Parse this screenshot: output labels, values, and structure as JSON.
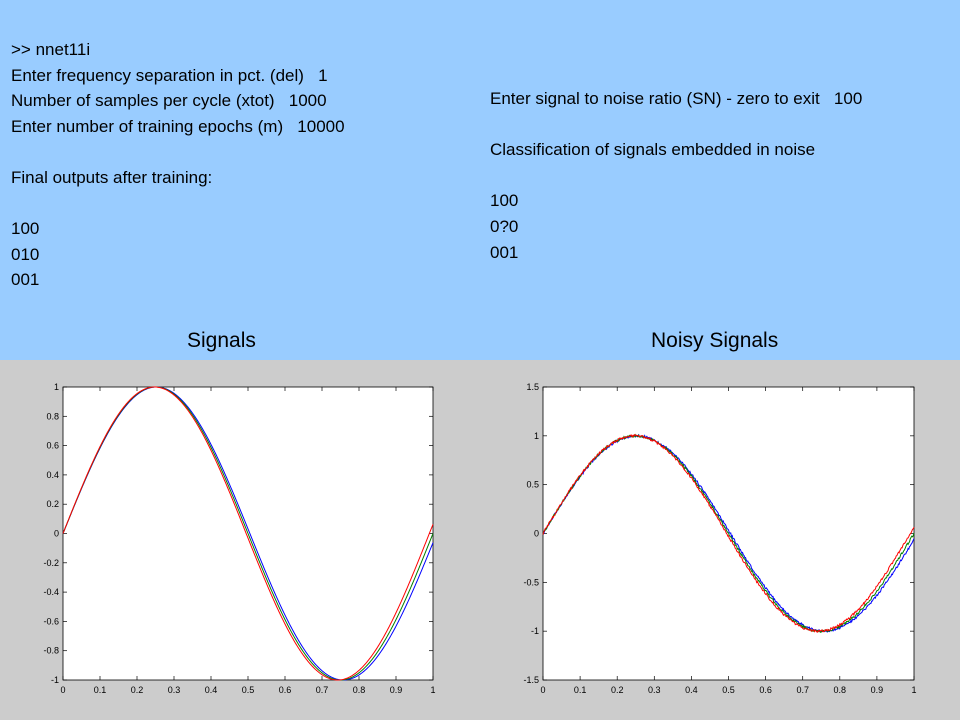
{
  "console_left": [
    ">> nnet11i",
    "Enter frequency separation in pct. (del)   1",
    "Number of samples per cycle (xtot)   1000",
    "Enter number of training epochs (m)   10000",
    "",
    "Final outputs after training:",
    "",
    "100",
    "010",
    "001"
  ],
  "console_right": [
    "Enter signal to noise ratio (SN) - zero to exit   100",
    "",
    "Classification of signals embedded in noise",
    "",
    "100",
    "0?0",
    "001"
  ],
  "plot_titles": {
    "left": "Signals",
    "right": "Noisy Signals"
  },
  "colors": {
    "top_bg": "#99ccff",
    "bottom_bg": "#cccccc",
    "series": [
      "#0000ff",
      "#008000",
      "#ff0000"
    ]
  },
  "chart_data": [
    {
      "type": "line",
      "title": "Signals",
      "xlim": [
        0,
        1
      ],
      "ylim": [
        -1,
        1
      ],
      "xticks": [
        "0",
        "0.1",
        "0.2",
        "0.3",
        "0.4",
        "0.5",
        "0.6",
        "0.7",
        "0.8",
        "0.9",
        "1"
      ],
      "yticks": [
        "1",
        "0.8",
        "0.6",
        "0.4",
        "0.2",
        "0",
        "-0.2",
        "-0.4",
        "-0.6",
        "-0.8",
        "-1"
      ],
      "series": [
        {
          "color": "#0000ff",
          "frequency": 0.99,
          "noise": 0
        },
        {
          "color": "#008000",
          "frequency": 1.0,
          "noise": 0
        },
        {
          "color": "#ff0000",
          "frequency": 1.01,
          "noise": 0
        }
      ]
    },
    {
      "type": "line",
      "title": "Noisy Signals",
      "xlim": [
        0,
        1
      ],
      "ylim": [
        -1.5,
        1.5
      ],
      "xticks": [
        "0",
        "0.1",
        "0.2",
        "0.3",
        "0.4",
        "0.5",
        "0.6",
        "0.7",
        "0.8",
        "0.9",
        "1"
      ],
      "yticks": [
        "1.5",
        "1",
        "0.5",
        "0",
        "-0.5",
        "-1",
        "-1.5"
      ],
      "series": [
        {
          "color": "#0000ff",
          "frequency": 0.99,
          "noise": 0.01
        },
        {
          "color": "#008000",
          "frequency": 1.0,
          "noise": 0.01
        },
        {
          "color": "#ff0000",
          "frequency": 1.01,
          "noise": 0.01
        }
      ]
    }
  ]
}
